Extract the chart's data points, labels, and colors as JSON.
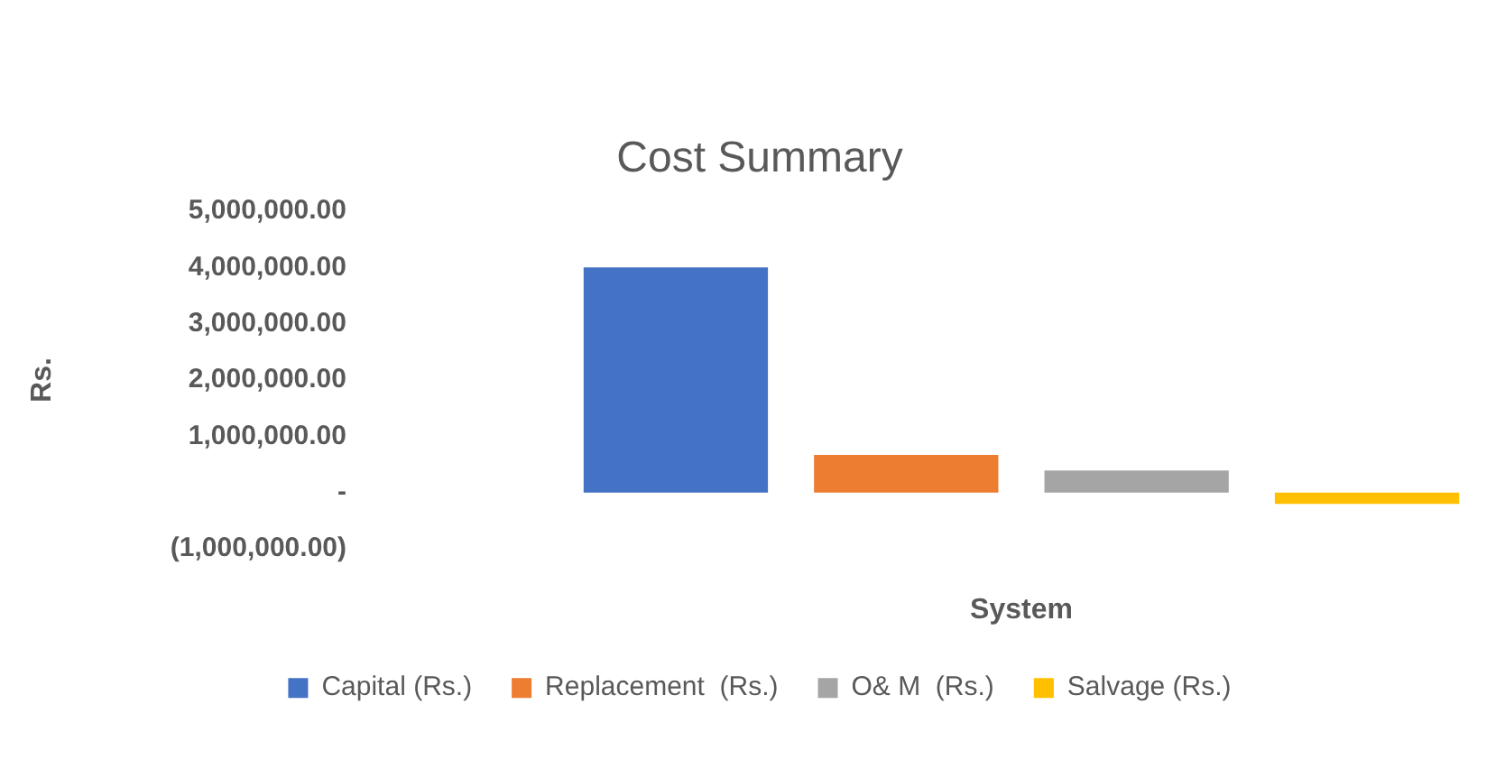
{
  "chart_data": {
    "type": "bar",
    "title": "Cost Summary",
    "xlabel": "System",
    "ylabel": "Rs.",
    "categories": [
      null
    ],
    "series": [
      {
        "name": "Capital (Rs.)",
        "color": "#4472c4",
        "values": [
          4000000
        ]
      },
      {
        "name": "Replacement  (Rs.)",
        "color": "#ed7d31",
        "values": [
          670000
        ]
      },
      {
        "name": "O& M  (Rs.)",
        "color": "#a5a5a5",
        "values": [
          390000
        ]
      },
      {
        "name": "Salvage (Rs.)",
        "color": "#ffc000",
        "values": [
          -200000
        ]
      }
    ],
    "ylim": [
      -1000000,
      5000000
    ],
    "yticks": [
      {
        "value": -1000000,
        "label": "(1,000,000.00)"
      },
      {
        "value": 0,
        "label": "-"
      },
      {
        "value": 1000000,
        "label": "1,000,000.00"
      },
      {
        "value": 2000000,
        "label": "2,000,000.00"
      },
      {
        "value": 3000000,
        "label": "3,000,000.00"
      },
      {
        "value": 4000000,
        "label": "4,000,000.00"
      },
      {
        "value": 5000000,
        "label": "5,000,000.00"
      }
    ],
    "grid": false,
    "legend": "bottom"
  }
}
